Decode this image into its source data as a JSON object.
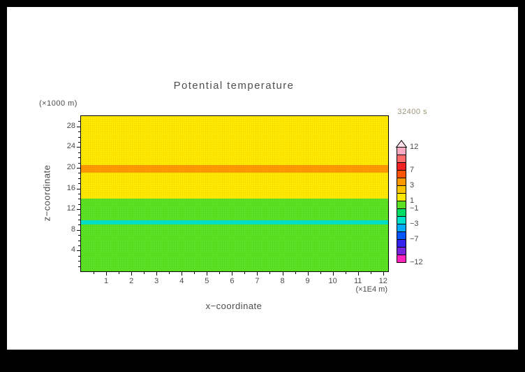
{
  "window": {
    "background": "#000000",
    "paper": "#ffffff"
  },
  "chart_data": {
    "type": "heatmap",
    "title": "Potential temperature",
    "timestamp": "32400 s",
    "x_axis": {
      "label": "x−coordinate",
      "unit_label": "(×1E4 m)",
      "range": [
        0,
        12.2
      ],
      "major_ticks": [
        1,
        2,
        3,
        4,
        5,
        6,
        7,
        8,
        9,
        10,
        11,
        12
      ],
      "minor_tick_step": 0.5
    },
    "z_axis": {
      "label": "z−coordinate",
      "unit_label": "(×1000 m)",
      "range": [
        0,
        30
      ],
      "major_ticks": [
        4,
        8,
        12,
        16,
        20,
        24,
        28
      ],
      "minor_tick_step": 1
    },
    "field_bands": [
      {
        "z_from": 20.5,
        "z_to": 30.0,
        "value_range": "1 to 3",
        "color": "#FFE800"
      },
      {
        "z_from": 19.0,
        "z_to": 20.5,
        "value_range": "3 to 5",
        "color": "#FF9900"
      },
      {
        "z_from": 14.0,
        "z_to": 19.0,
        "value_range": "1 to 3",
        "color": "#FFE800"
      },
      {
        "z_from": 9.8,
        "z_to": 14.0,
        "value_range": "−1 to 1",
        "color": "#5CE023"
      },
      {
        "z_from": 9.0,
        "z_to": 9.8,
        "value_range": "−3 to −2",
        "color": "#00E0C8"
      },
      {
        "z_from": 0.0,
        "z_to": 9.0,
        "value_range": "−1 to 1",
        "color": "#5CE023"
      }
    ],
    "colorbar": {
      "arrow_color": "#FFE0E8",
      "segments": [
        {
          "range": "10 to 12",
          "color": "#FFAAC0"
        },
        {
          "range": "8 to 10",
          "color": "#FF6A6A"
        },
        {
          "range": "7 to 8",
          "color": "#F22222"
        },
        {
          "range": "5 to 7",
          "color": "#FF5500"
        },
        {
          "range": "3 to 5",
          "color": "#FF9900"
        },
        {
          "range": "2 to 3",
          "color": "#FFC400"
        },
        {
          "range": "1 to 2",
          "color": "#FFE800"
        },
        {
          "range": "−1 to 1",
          "color": "#5CE023"
        },
        {
          "range": "−2 to −1",
          "color": "#00DC64"
        },
        {
          "range": "−3 to −2",
          "color": "#00E0C8"
        },
        {
          "range": "−5 to −3",
          "color": "#00AAFF"
        },
        {
          "range": "−7 to −5",
          "color": "#0055FF"
        },
        {
          "range": "−8 to −7",
          "color": "#3322EE"
        },
        {
          "range": "−10 to −8",
          "color": "#7722DD"
        },
        {
          "range": "−12 to −10",
          "color": "#FF22BB"
        }
      ],
      "tick_labels": [
        {
          "text": "12",
          "boundary": 0
        },
        {
          "text": "7",
          "boundary": 3
        },
        {
          "text": "3",
          "boundary": 5
        },
        {
          "text": "1",
          "boundary": 7
        },
        {
          "text": "−1",
          "boundary": 8
        },
        {
          "text": "−3",
          "boundary": 10
        },
        {
          "text": "−7",
          "boundary": 12
        },
        {
          "text": "−12",
          "boundary": 15
        }
      ]
    }
  }
}
